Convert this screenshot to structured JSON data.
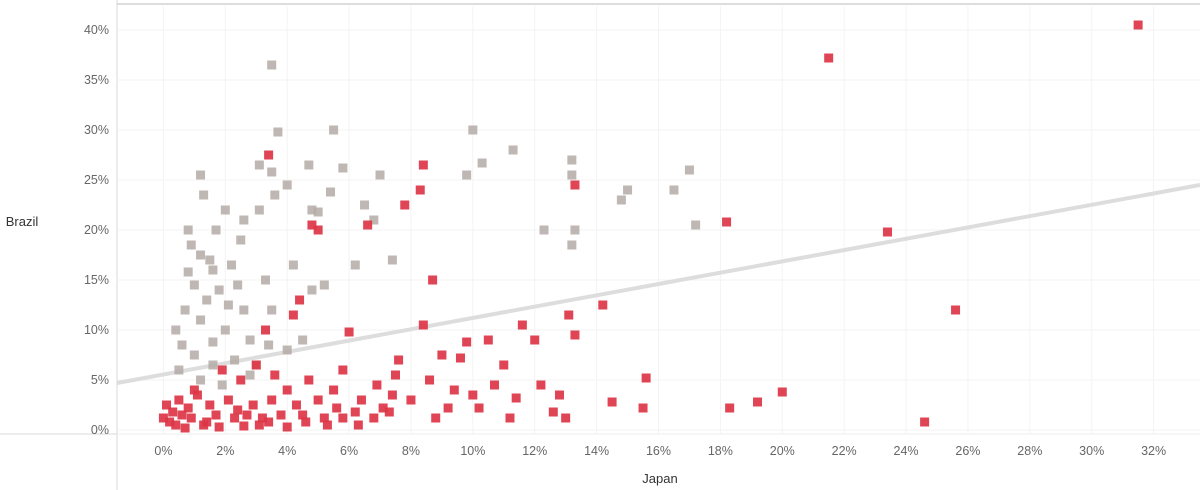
{
  "chart_data": {
    "type": "scatter",
    "title": "",
    "xlabel": "Japan",
    "ylabel": "Brazil",
    "xlim": [
      -0.015,
      0.335
    ],
    "ylim": [
      -0.004,
      0.43
    ],
    "x_ticks": [
      "0%",
      "2%",
      "4%",
      "6%",
      "8%",
      "10%",
      "12%",
      "14%",
      "16%",
      "18%",
      "20%",
      "22%",
      "24%",
      "26%",
      "28%",
      "30%",
      "32%"
    ],
    "y_ticks": [
      "0%",
      "5%",
      "10%",
      "15%",
      "20%",
      "25%",
      "30%",
      "35%",
      "40%"
    ],
    "grid": true,
    "colors": {
      "highlight": "#dc3545",
      "other": "#b4aaa6",
      "trend": "#dddddd"
    },
    "trend_line": {
      "x": [
        -0.015,
        0.335
      ],
      "y": [
        0.047,
        0.245
      ]
    },
    "series": [
      {
        "color": "highlight",
        "points": [
          [
            0.315,
            0.405
          ],
          [
            0.215,
            0.372
          ],
          [
            0.234,
            0.198
          ],
          [
            0.256,
            0.12
          ],
          [
            0.246,
            0.008
          ],
          [
            0.182,
            0.208
          ],
          [
            0.2,
            0.038
          ],
          [
            0.192,
            0.028
          ],
          [
            0.183,
            0.022
          ],
          [
            0.156,
            0.052
          ],
          [
            0.155,
            0.022
          ],
          [
            0.145,
            0.028
          ],
          [
            0.142,
            0.125
          ],
          [
            0.133,
            0.245
          ],
          [
            0.133,
            0.095
          ],
          [
            0.131,
            0.115
          ],
          [
            0.13,
            0.012
          ],
          [
            0.128,
            0.035
          ],
          [
            0.126,
            0.018
          ],
          [
            0.122,
            0.045
          ],
          [
            0.12,
            0.09
          ],
          [
            0.116,
            0.105
          ],
          [
            0.114,
            0.032
          ],
          [
            0.112,
            0.012
          ],
          [
            0.11,
            0.065
          ],
          [
            0.107,
            0.045
          ],
          [
            0.105,
            0.09
          ],
          [
            0.102,
            0.022
          ],
          [
            0.1,
            0.035
          ],
          [
            0.098,
            0.088
          ],
          [
            0.096,
            0.072
          ],
          [
            0.094,
            0.04
          ],
          [
            0.092,
            0.022
          ],
          [
            0.09,
            0.075
          ],
          [
            0.088,
            0.012
          ],
          [
            0.087,
            0.15
          ],
          [
            0.086,
            0.05
          ],
          [
            0.084,
            0.105
          ],
          [
            0.084,
            0.265
          ],
          [
            0.083,
            0.24
          ],
          [
            0.08,
            0.03
          ],
          [
            0.078,
            0.225
          ],
          [
            0.076,
            0.07
          ],
          [
            0.075,
            0.055
          ],
          [
            0.074,
            0.035
          ],
          [
            0.071,
            0.022
          ],
          [
            0.069,
            0.045
          ],
          [
            0.066,
            0.205
          ],
          [
            0.064,
            0.03
          ],
          [
            0.062,
            0.018
          ],
          [
            0.06,
            0.098
          ],
          [
            0.058,
            0.06
          ],
          [
            0.056,
            0.022
          ],
          [
            0.055,
            0.04
          ],
          [
            0.052,
            0.012
          ],
          [
            0.05,
            0.03
          ],
          [
            0.05,
            0.2
          ],
          [
            0.048,
            0.205
          ],
          [
            0.047,
            0.05
          ],
          [
            0.045,
            0.015
          ],
          [
            0.044,
            0.13
          ],
          [
            0.043,
            0.025
          ],
          [
            0.042,
            0.115
          ],
          [
            0.04,
            0.04
          ],
          [
            0.038,
            0.015
          ],
          [
            0.036,
            0.055
          ],
          [
            0.035,
            0.03
          ],
          [
            0.034,
            0.275
          ],
          [
            0.033,
            0.1
          ],
          [
            0.032,
            0.012
          ],
          [
            0.03,
            0.065
          ],
          [
            0.029,
            0.025
          ],
          [
            0.027,
            0.015
          ],
          [
            0.025,
            0.05
          ],
          [
            0.023,
            0.012
          ],
          [
            0.021,
            0.03
          ],
          [
            0.019,
            0.06
          ],
          [
            0.017,
            0.015
          ],
          [
            0.015,
            0.025
          ],
          [
            0.013,
            0.005
          ],
          [
            0.011,
            0.035
          ],
          [
            0.009,
            0.012
          ],
          [
            0.008,
            0.022
          ],
          [
            0.007,
            0.002
          ],
          [
            0.006,
            0.015
          ],
          [
            0.005,
            0.03
          ],
          [
            0.004,
            0.005
          ],
          [
            0.003,
            0.018
          ],
          [
            0.002,
            0.008
          ],
          [
            0.001,
            0.025
          ],
          [
            0.0,
            0.012
          ],
          [
            0.031,
            0.005
          ],
          [
            0.046,
            0.008
          ],
          [
            0.053,
            0.005
          ],
          [
            0.058,
            0.012
          ],
          [
            0.063,
            0.005
          ],
          [
            0.068,
            0.012
          ],
          [
            0.073,
            0.018
          ],
          [
            0.018,
            0.003
          ],
          [
            0.026,
            0.004
          ],
          [
            0.04,
            0.003
          ],
          [
            0.034,
            0.008
          ],
          [
            0.01,
            0.04
          ],
          [
            0.014,
            0.008
          ],
          [
            0.024,
            0.02
          ]
        ]
      },
      {
        "color": "other",
        "points": [
          [
            0.035,
            0.365
          ],
          [
            0.037,
            0.298
          ],
          [
            0.055,
            0.3
          ],
          [
            0.1,
            0.3
          ],
          [
            0.113,
            0.28
          ],
          [
            0.103,
            0.267
          ],
          [
            0.098,
            0.255
          ],
          [
            0.132,
            0.27
          ],
          [
            0.132,
            0.255
          ],
          [
            0.17,
            0.26
          ],
          [
            0.165,
            0.24
          ],
          [
            0.15,
            0.24
          ],
          [
            0.148,
            0.23
          ],
          [
            0.133,
            0.2
          ],
          [
            0.132,
            0.185
          ],
          [
            0.123,
            0.2
          ],
          [
            0.172,
            0.205
          ],
          [
            0.012,
            0.255
          ],
          [
            0.013,
            0.235
          ],
          [
            0.031,
            0.265
          ],
          [
            0.035,
            0.258
          ],
          [
            0.04,
            0.245
          ],
          [
            0.047,
            0.265
          ],
          [
            0.058,
            0.262
          ],
          [
            0.07,
            0.255
          ],
          [
            0.054,
            0.238
          ],
          [
            0.065,
            0.225
          ],
          [
            0.048,
            0.22
          ],
          [
            0.05,
            0.218
          ],
          [
            0.068,
            0.21
          ],
          [
            0.036,
            0.235
          ],
          [
            0.031,
            0.22
          ],
          [
            0.02,
            0.22
          ],
          [
            0.026,
            0.21
          ],
          [
            0.008,
            0.2
          ],
          [
            0.009,
            0.185
          ],
          [
            0.012,
            0.175
          ],
          [
            0.015,
            0.17
          ],
          [
            0.016,
            0.16
          ],
          [
            0.022,
            0.165
          ],
          [
            0.01,
            0.145
          ],
          [
            0.007,
            0.12
          ],
          [
            0.018,
            0.14
          ],
          [
            0.024,
            0.145
          ],
          [
            0.033,
            0.15
          ],
          [
            0.026,
            0.12
          ],
          [
            0.012,
            0.11
          ],
          [
            0.004,
            0.1
          ],
          [
            0.02,
            0.1
          ],
          [
            0.028,
            0.09
          ],
          [
            0.016,
            0.088
          ],
          [
            0.034,
            0.085
          ],
          [
            0.04,
            0.08
          ],
          [
            0.006,
            0.085
          ],
          [
            0.01,
            0.075
          ],
          [
            0.016,
            0.065
          ],
          [
            0.023,
            0.07
          ],
          [
            0.03,
            0.065
          ],
          [
            0.028,
            0.055
          ],
          [
            0.042,
            0.165
          ],
          [
            0.048,
            0.14
          ],
          [
            0.052,
            0.145
          ],
          [
            0.045,
            0.09
          ],
          [
            0.062,
            0.165
          ],
          [
            0.074,
            0.17
          ],
          [
            0.005,
            0.06
          ],
          [
            0.012,
            0.05
          ],
          [
            0.019,
            0.045
          ],
          [
            0.014,
            0.13
          ],
          [
            0.021,
            0.125
          ],
          [
            0.035,
            0.12
          ],
          [
            0.008,
            0.158
          ],
          [
            0.017,
            0.2
          ],
          [
            0.025,
            0.19
          ]
        ]
      }
    ]
  }
}
